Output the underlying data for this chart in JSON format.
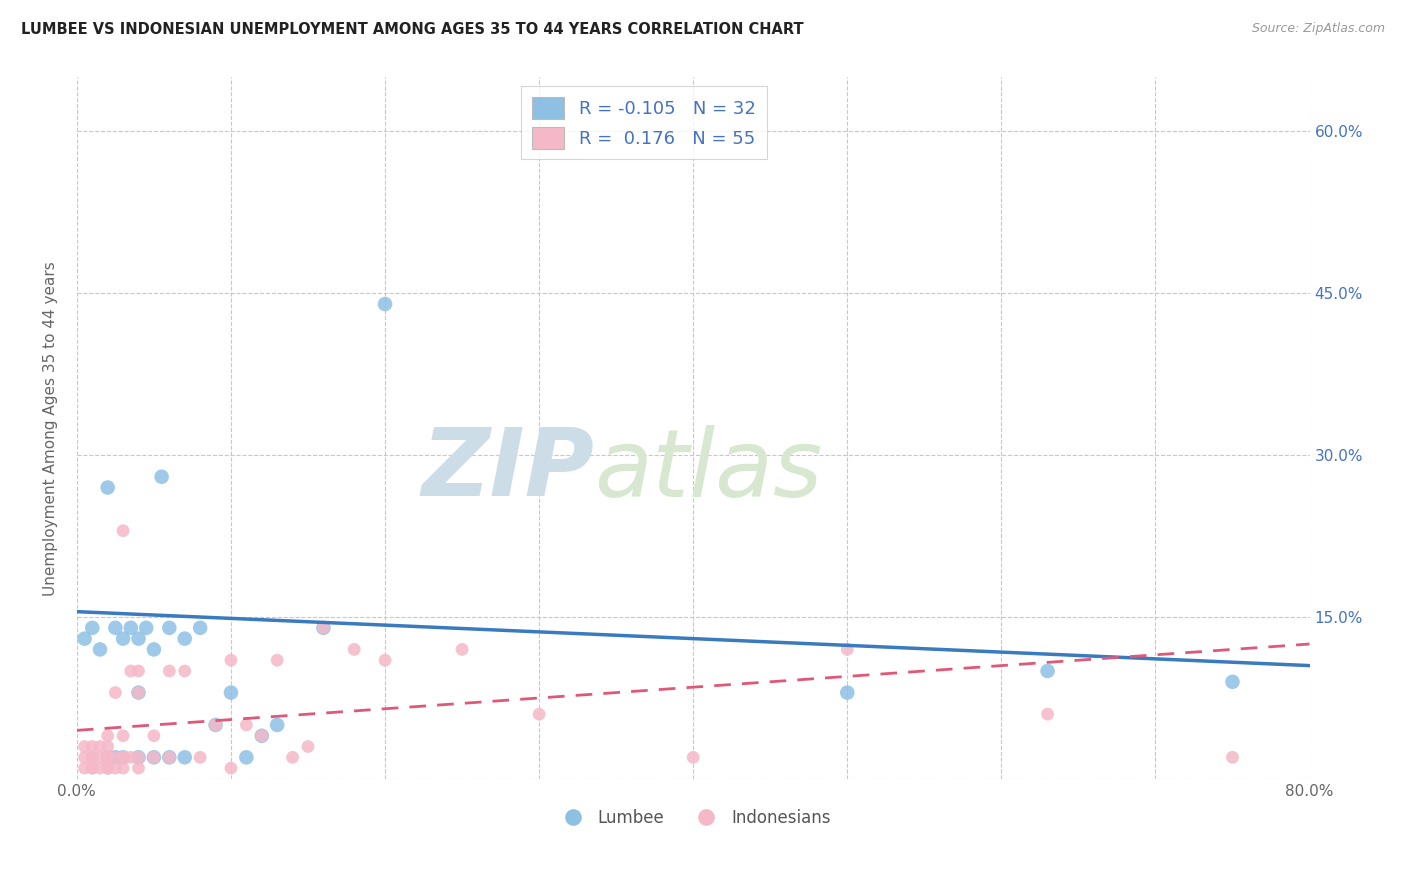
{
  "title": "LUMBEE VS INDONESIAN UNEMPLOYMENT AMONG AGES 35 TO 44 YEARS CORRELATION CHART",
  "source": "Source: ZipAtlas.com",
  "ylabel": "Unemployment Among Ages 35 to 44 years",
  "xlim": [
    0.0,
    0.8
  ],
  "ylim": [
    0.0,
    0.65
  ],
  "xticks": [
    0.0,
    0.1,
    0.2,
    0.3,
    0.4,
    0.5,
    0.6,
    0.7,
    0.8
  ],
  "xticklabels": [
    "0.0%",
    "",
    "",
    "",
    "",
    "",
    "",
    "",
    "80.0%"
  ],
  "ytick_positions": [
    0.0,
    0.15,
    0.3,
    0.45,
    0.6
  ],
  "yticklabels_right": [
    "",
    "15.0%",
    "30.0%",
    "45.0%",
    "60.0%"
  ],
  "lumbee_color": "#8ec0e4",
  "indonesian_color": "#f5b8c8",
  "lumbee_line_color": "#3a7abf",
  "indonesian_line_color": "#e05878",
  "background_color": "#ffffff",
  "grid_color": "#c8c8c8",
  "watermark_zip": "ZIP",
  "watermark_atlas": "atlas",
  "legend_lumbee_label": "Lumbee",
  "legend_indonesian_label": "Indonesians",
  "legend_R_lumbee": "-0.105",
  "legend_N_lumbee": "32",
  "legend_R_indonesian": "0.176",
  "legend_N_indonesian": "55",
  "lumbee_x": [
    0.005,
    0.01,
    0.015,
    0.02,
    0.02,
    0.025,
    0.025,
    0.03,
    0.03,
    0.035,
    0.04,
    0.04,
    0.04,
    0.045,
    0.05,
    0.05,
    0.055,
    0.06,
    0.06,
    0.07,
    0.07,
    0.08,
    0.09,
    0.1,
    0.11,
    0.12,
    0.13,
    0.16,
    0.2,
    0.5,
    0.63,
    0.75
  ],
  "lumbee_y": [
    0.13,
    0.14,
    0.12,
    0.02,
    0.27,
    0.02,
    0.14,
    0.13,
    0.02,
    0.14,
    0.08,
    0.13,
    0.02,
    0.14,
    0.12,
    0.02,
    0.28,
    0.14,
    0.02,
    0.13,
    0.02,
    0.14,
    0.05,
    0.08,
    0.02,
    0.04,
    0.05,
    0.14,
    0.44,
    0.08,
    0.1,
    0.09
  ],
  "indonesian_x": [
    0.005,
    0.005,
    0.005,
    0.01,
    0.01,
    0.01,
    0.01,
    0.01,
    0.015,
    0.015,
    0.015,
    0.02,
    0.02,
    0.02,
    0.02,
    0.02,
    0.02,
    0.02,
    0.025,
    0.025,
    0.025,
    0.03,
    0.03,
    0.03,
    0.03,
    0.03,
    0.035,
    0.035,
    0.04,
    0.04,
    0.04,
    0.04,
    0.05,
    0.05,
    0.06,
    0.06,
    0.07,
    0.08,
    0.09,
    0.1,
    0.1,
    0.11,
    0.12,
    0.13,
    0.14,
    0.15,
    0.16,
    0.18,
    0.2,
    0.25,
    0.3,
    0.4,
    0.5,
    0.63,
    0.75
  ],
  "indonesian_y": [
    0.02,
    0.01,
    0.03,
    0.02,
    0.01,
    0.03,
    0.02,
    0.01,
    0.02,
    0.03,
    0.01,
    0.02,
    0.01,
    0.04,
    0.02,
    0.01,
    0.03,
    0.01,
    0.08,
    0.02,
    0.01,
    0.23,
    0.02,
    0.04,
    0.01,
    0.02,
    0.1,
    0.02,
    0.08,
    0.02,
    0.01,
    0.1,
    0.02,
    0.04,
    0.1,
    0.02,
    0.1,
    0.02,
    0.05,
    0.11,
    0.01,
    0.05,
    0.04,
    0.11,
    0.02,
    0.03,
    0.14,
    0.12,
    0.11,
    0.12,
    0.06,
    0.02,
    0.12,
    0.06,
    0.02
  ],
  "lumbee_trendline_x": [
    0.0,
    0.8
  ],
  "lumbee_trendline_y": [
    0.155,
    0.105
  ],
  "indonesian_trendline_x": [
    0.0,
    0.8
  ],
  "indonesian_trendline_y": [
    0.045,
    0.125
  ]
}
